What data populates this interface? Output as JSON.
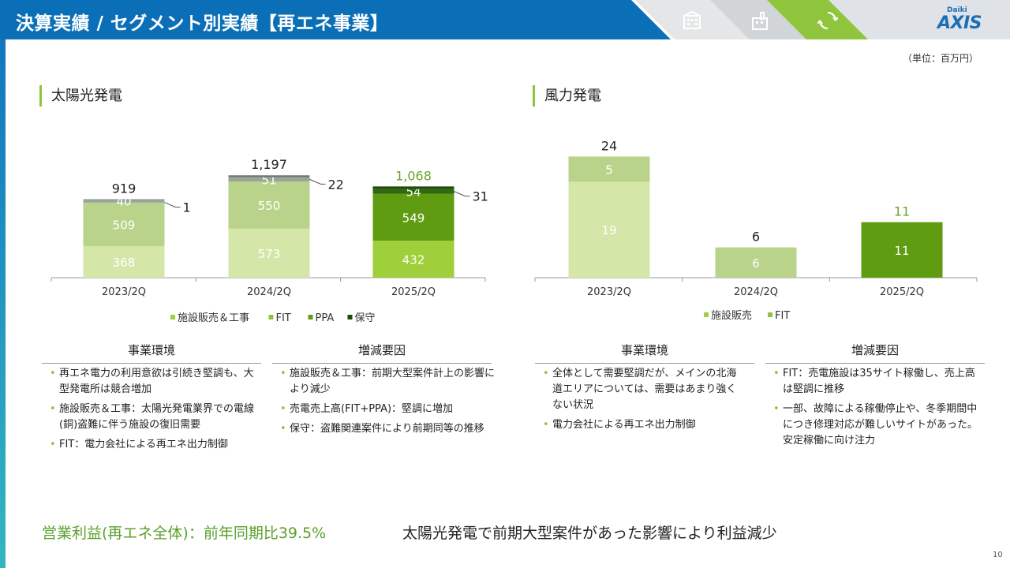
{
  "header": {
    "title": "決算実績 / セグメント別実績【再エネ事業】",
    "logo_small": "Daiki",
    "logo_big": "AXIS",
    "icons": [
      "building-icon",
      "factory-icon",
      "recycle-icon"
    ]
  },
  "unit_label": "（単位：百万円）",
  "chart_data": [
    {
      "type": "bar",
      "stacked": true,
      "title": "太陽光発電",
      "categories": [
        "2023/Q2",
        "2024/Q2",
        "2025/Q2"
      ],
      "category_labels": [
        "2023/2Q",
        "2024/2Q",
        "2025/2Q"
      ],
      "series": [
        {
          "name": "施設販売＆工事",
          "values": [
            368,
            573,
            432
          ],
          "colors": [
            "#d4e6a8",
            "#d4e6a8",
            "#9fcf3a"
          ]
        },
        {
          "name": "FIT",
          "values": [
            509,
            550,
            549
          ],
          "colors": [
            "#b9d38a",
            "#b9d38a",
            "#5f9c12"
          ]
        },
        {
          "name": "PPA",
          "values": [
            40,
            51,
            54
          ],
          "colors": [
            "#9aa49a",
            "#9aa49a",
            "#2f6a10"
          ]
        },
        {
          "name": "保守",
          "values": [
            1,
            22,
            31
          ],
          "colors": [
            "#6c786c",
            "#6c786c",
            "#1e4a0a"
          ]
        }
      ],
      "totals": [
        "919",
        "1,197",
        "1,068"
      ],
      "total_colors": [
        "#222222",
        "#222222",
        "#6aa52a"
      ],
      "segment_labels": [
        [
          "368",
          "509",
          "40"
        ],
        [
          "573",
          "550",
          "51"
        ],
        [
          "432",
          "549",
          "54"
        ]
      ],
      "outside_labels": [
        "1",
        "22",
        "31"
      ],
      "legend": [
        {
          "label": "施設販売＆工事",
          "color": "#9fcf3a"
        },
        {
          "label": "FIT",
          "color": "#8fc53c"
        },
        {
          "label": "PPA",
          "color": "#5f9c12"
        },
        {
          "label": "保守",
          "color": "#1e4a0a"
        }
      ]
    },
    {
      "type": "bar",
      "stacked": true,
      "title": "風力発電",
      "categories": [
        "2023/Q2",
        "2024/Q2",
        "2025/Q2"
      ],
      "category_labels": [
        "2023/2Q",
        "2024/2Q",
        "2025/2Q"
      ],
      "series": [
        {
          "name": "施設販売",
          "values": [
            19,
            0,
            0
          ],
          "colors": [
            "#d4e6a8",
            "#d4e6a8",
            "#d4e6a8"
          ]
        },
        {
          "name": "FIT",
          "values": [
            5,
            6,
            11
          ],
          "colors": [
            "#b9d38a",
            "#b9d38a",
            "#5f9c12"
          ]
        }
      ],
      "totals": [
        "24",
        "6",
        "11"
      ],
      "total_colors": [
        "#222222",
        "#222222",
        "#6aa52a"
      ],
      "segment_labels": [
        [
          "19",
          "5"
        ],
        [
          "",
          "6"
        ],
        [
          "",
          "11"
        ]
      ],
      "legend": [
        {
          "label": "施設販売",
          "color": "#9fcf3a"
        },
        {
          "label": "FIT",
          "color": "#8fc53c"
        }
      ]
    }
  ],
  "solar": {
    "env_heading": "事業環境",
    "env_items": [
      "再エネ電力の利用意欲は引続き堅調も、大型発電所は競合増加",
      "施設販売＆工事：太陽光発電業界での電線(銅)盗難に伴う施設の復旧需要",
      "FIT：電力会社による再エネ出力制御"
    ],
    "factor_heading": "増減要因",
    "factor_items": [
      "施設販売＆工事：前期大型案件計上の影響により減少",
      "売電売上高(FIT+PPA)：堅調に増加",
      "保守：盗難関連案件により前期同等の推移"
    ]
  },
  "wind": {
    "env_heading": "事業環境",
    "env_items": [
      "全体として需要堅調だが、メインの北海道エリアについては、需要はあまり強くない状況",
      "電力会社による再エネ出力制御"
    ],
    "factor_heading": "増減要因",
    "factor_items": [
      "FIT：売電施設は35サイト稼働し、売上高は堅調に推移",
      "一部、故障による稼働停止や、冬季期間中につき修理対応が難しいサイトがあった。安定稼働に向け注力"
    ]
  },
  "footer": {
    "left": "営業利益(再エネ全体)：前年同期比39.5%",
    "right": "太陽光発電で前期大型案件があった影響により利益減少"
  },
  "page_number": "10"
}
